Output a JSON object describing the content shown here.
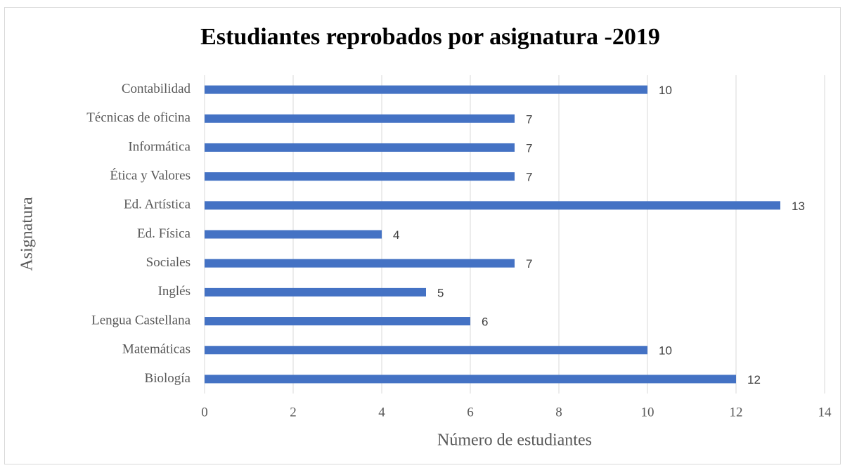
{
  "chart_data": {
    "type": "bar",
    "orientation": "horizontal",
    "title": "Estudiantes reprobados por asignatura -2019",
    "x_label": "Número de estudiantes",
    "y_label": "Asignatura",
    "categories": [
      "Contabilidad",
      "Técnicas de oficina",
      "Informática",
      "Ética y Valores",
      "Ed. Artística",
      "Ed. Física",
      "Sociales",
      "Inglés",
      "Lengua Castellana",
      "Matemáticas",
      "Biología"
    ],
    "values": [
      10,
      7,
      7,
      7,
      13,
      4,
      7,
      5,
      6,
      10,
      12
    ],
    "color": "#4472c4",
    "xlim": [
      0,
      14
    ],
    "xticks": [
      0,
      2,
      4,
      6,
      8,
      10,
      12,
      14
    ],
    "grid": true
  }
}
